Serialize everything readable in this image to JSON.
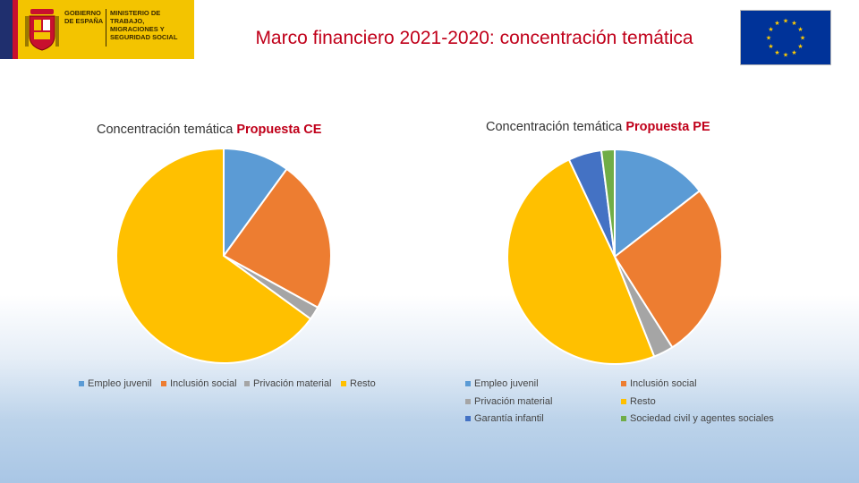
{
  "header": {
    "logo": {
      "line1": "GOBIERNO DE ESPAÑA",
      "line2": "MINISTERIO DE TRABAJO, MIGRACIONES Y SEGURIDAD SOCIAL"
    },
    "title": "Marco financiero 2021-2020: concentración temática",
    "flag_icon": "eu-flag-icon"
  },
  "colors": {
    "title_red": "#c0001a",
    "empleo_juvenil": "#5b9bd5",
    "inclusion_social": "#ed7d31",
    "privacion_material": "#a5a5a5",
    "resto": "#ffc000",
    "garantia_infantil": "#4472c4",
    "sociedad_civil": "#70ad47"
  },
  "chart_data": [
    {
      "type": "pie",
      "title_prefix": "Concentración temática ",
      "title_highlight": "Propuesta CE",
      "categories": [
        "Empleo juvenil",
        "Inclusión social",
        "Privación material",
        "Resto"
      ],
      "values": [
        10,
        23,
        2,
        65
      ],
      "colors": [
        "#5b9bd5",
        "#ed7d31",
        "#a5a5a5",
        "#ffc000"
      ],
      "legend_position": "bottom"
    },
    {
      "type": "pie",
      "title_prefix": "Concentración temática ",
      "title_highlight": "Propuesta PE",
      "categories": [
        "Empleo juvenil",
        "Inclusión social",
        "Privación material",
        "Resto",
        "Garantía infantil",
        "Sociedad civil y agentes sociales"
      ],
      "values": [
        14.5,
        26.5,
        3,
        49,
        5,
        2
      ],
      "colors": [
        "#5b9bd5",
        "#ed7d31",
        "#a5a5a5",
        "#ffc000",
        "#4472c4",
        "#70ad47"
      ],
      "legend_position": "bottom"
    }
  ]
}
